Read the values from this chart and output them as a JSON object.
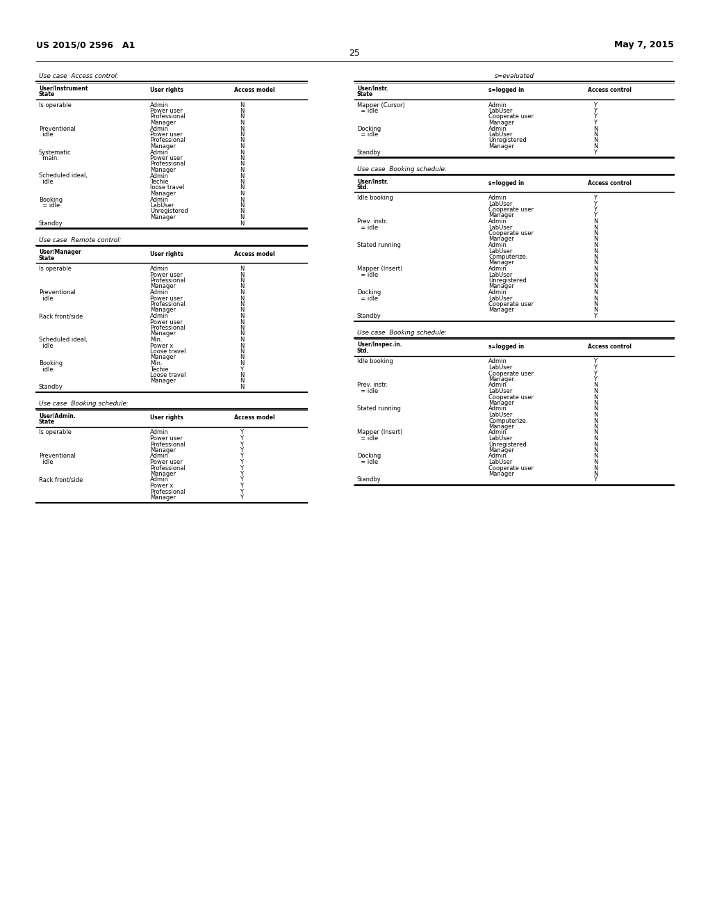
{
  "header_left": "US 2015/0 2596   A1",
  "header_right": "May 7, 2015",
  "page_number": "25",
  "background_color": "#ffffff",
  "left_sections": [
    {
      "title": "Use case  Access control:",
      "col1_header": "User/Instrument\nState",
      "col2_header": "User rights",
      "col3_header": "Access model",
      "rows": [
        [
          "Is operable",
          "Admin",
          "N"
        ],
        [
          "",
          "Power user",
          "N"
        ],
        [
          "",
          "Professional",
          "N"
        ],
        [
          "",
          "Manager",
          "N"
        ],
        [
          "Preventional",
          "Admin",
          "N"
        ],
        [
          "  idle",
          "Power user",
          "N"
        ],
        [
          "",
          "Professional",
          "N"
        ],
        [
          "",
          "Manager",
          "N"
        ],
        [
          "Systematic",
          "Admin",
          "N"
        ],
        [
          "  main.",
          "Power user",
          "N"
        ],
        [
          "",
          "Professional",
          "N"
        ],
        [
          "",
          "Manager",
          "N"
        ],
        [
          "Scheduled ideal,",
          "Admin",
          "N"
        ],
        [
          "  idle",
          "Techie",
          "N"
        ],
        [
          "",
          "loose travel",
          "N"
        ],
        [
          "",
          "Manager",
          "N"
        ],
        [
          "Booking",
          "Admin",
          "N"
        ],
        [
          "  = idle",
          "LabUser",
          "N"
        ],
        [
          "",
          "Unregistered",
          "N"
        ],
        [
          "",
          "Manager",
          "N"
        ],
        [
          "Standby",
          "",
          "N"
        ]
      ]
    },
    {
      "title": "Use case  Remote control:",
      "col1_header": "User/Manager\nState",
      "col2_header": "User rights",
      "col3_header": "Access model",
      "rows": [
        [
          "Is operable",
          "Admin",
          "N"
        ],
        [
          "",
          "Power user",
          "N"
        ],
        [
          "",
          "Professional",
          "N"
        ],
        [
          "",
          "Manager",
          "N"
        ],
        [
          "Preventional",
          "Admin",
          "N"
        ],
        [
          "  idle",
          "Power user",
          "N"
        ],
        [
          "",
          "Professional",
          "N"
        ],
        [
          "",
          "Manager",
          "N"
        ],
        [
          "Rack front/side",
          "Admin",
          "N"
        ],
        [
          "",
          "Power user",
          "N"
        ],
        [
          "",
          "Professional",
          "N"
        ],
        [
          "",
          "Manager",
          "N"
        ],
        [
          "Scheduled ideal,",
          "Min.",
          "N"
        ],
        [
          "  idle",
          "Power x",
          "N"
        ],
        [
          "",
          "Loose travel",
          "N"
        ],
        [
          "",
          "Manager",
          "N"
        ],
        [
          "Booking",
          "Min.",
          "N"
        ],
        [
          "  idle",
          "Techie",
          "Y"
        ],
        [
          "",
          "Loose travel",
          "N"
        ],
        [
          "",
          "Manager",
          "N"
        ],
        [
          "Standby",
          "",
          "N"
        ]
      ]
    },
    {
      "title": "Use case  Booking schedule:",
      "col1_header": "User/Admin.\nState",
      "col2_header": "User rights",
      "col3_header": "Access model",
      "rows": [
        [
          "Is operable",
          "Admin",
          "Y"
        ],
        [
          "",
          "Power user",
          "Y"
        ],
        [
          "",
          "Professional",
          "Y"
        ],
        [
          "",
          "Manager",
          "Y"
        ],
        [
          "Preventional",
          "Admin",
          "Y"
        ],
        [
          "  idle",
          "Power user",
          "Y"
        ],
        [
          "",
          "Professional",
          "Y"
        ],
        [
          "",
          "Manager",
          "Y"
        ],
        [
          "Rack front/side",
          "Admin",
          "Y"
        ],
        [
          "",
          "Power x",
          "Y"
        ],
        [
          "",
          "Professional",
          "Y"
        ],
        [
          "",
          "Manager",
          "Y"
        ]
      ]
    }
  ],
  "right_sections": [
    {
      "title": "s=evaluated",
      "title_align": "center",
      "col1_header": "User/Instr.\nState",
      "col2_header": "s=logged in",
      "col3_header": "Access control",
      "rows": [
        [
          "Mapper (Cursor)",
          "Admin",
          "Y"
        ],
        [
          "  = idle",
          "LabUser",
          "Y"
        ],
        [
          "",
          "Cooperate user",
          "Y"
        ],
        [
          "",
          "Manager",
          "Y"
        ],
        [
          "Docking",
          "Admin",
          "N"
        ],
        [
          "  = idle",
          "LabUser",
          "N"
        ],
        [
          "",
          "Unregistered",
          "N"
        ],
        [
          "",
          "Manager",
          "N"
        ],
        [
          "Standby",
          "",
          "Y"
        ]
      ]
    },
    {
      "title": "Use case  Booking schedule:",
      "title_align": "left",
      "col1_header": "User/Instr.\nStd.",
      "col2_header": "s=logged in",
      "col3_header": "Access control",
      "rows": [
        [
          "Idle booking",
          "Admin",
          "Y"
        ],
        [
          "",
          "LabUser",
          "Y"
        ],
        [
          "",
          "Cooperate user",
          "Y"
        ],
        [
          "",
          "Manager",
          "Y"
        ],
        [
          "Prev. instr.",
          "Admin",
          "N"
        ],
        [
          "  = idle",
          "LabUser",
          "N"
        ],
        [
          "",
          "Cooperate user",
          "N"
        ],
        [
          "",
          "Manager",
          "N"
        ],
        [
          "Stated running",
          "Admin",
          "N"
        ],
        [
          "",
          "LabUser",
          "N"
        ],
        [
          "",
          "Computerize.",
          "N"
        ],
        [
          "",
          "Manager",
          "N"
        ],
        [
          "Mapper (Insert)",
          "Admin",
          "N"
        ],
        [
          "  = idle",
          "LabUser",
          "N"
        ],
        [
          "",
          "Unregistered",
          "N"
        ],
        [
          "",
          "Manager",
          "N"
        ],
        [
          "Docking",
          "Admin",
          "N"
        ],
        [
          "  = idle",
          "LabUser",
          "N"
        ],
        [
          "",
          "Cooperate user",
          "N"
        ],
        [
          "",
          "Manager",
          "N"
        ],
        [
          "Standby",
          "",
          "Y"
        ]
      ]
    },
    {
      "title": "Use case  Booking schedule:",
      "title_align": "left",
      "col1_header": "User/Inspec.in.\nStd.",
      "col2_header": "s=logged in",
      "col3_header": "Access control",
      "rows": [
        [
          "Idle booking",
          "Admin",
          "Y"
        ],
        [
          "",
          "LabUser",
          "Y"
        ],
        [
          "",
          "Cooperate user",
          "Y"
        ],
        [
          "",
          "Manager",
          "Y"
        ],
        [
          "Prev. instr.",
          "Admin",
          "N"
        ],
        [
          "  = idle",
          "LabUser",
          "N"
        ],
        [
          "",
          "Cooperate user",
          "N"
        ],
        [
          "",
          "Manager",
          "N"
        ],
        [
          "Stated running",
          "Admin",
          "N"
        ],
        [
          "",
          "LabUser",
          "N"
        ],
        [
          "",
          "Computerize.",
          "N"
        ],
        [
          "",
          "Manager",
          "N"
        ],
        [
          "Mapper (Insert)",
          "Admin",
          "N"
        ],
        [
          "  = idle",
          "LabUser",
          "N"
        ],
        [
          "",
          "Unregistered",
          "N"
        ],
        [
          "",
          "Manager",
          "N"
        ],
        [
          "Docking",
          "Admin",
          "N"
        ],
        [
          "  = idle",
          "LabUser",
          "N"
        ],
        [
          "",
          "Cooperate user",
          "N"
        ],
        [
          "",
          "Manager",
          "N"
        ],
        [
          "Standby",
          "",
          "Y"
        ]
      ]
    }
  ]
}
